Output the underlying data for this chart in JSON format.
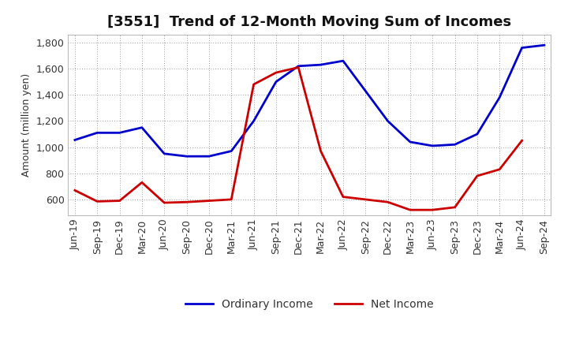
{
  "title": "[3551]  Trend of 12-Month Moving Sum of Incomes",
  "ylabel": "Amount (million yen)",
  "x_labels": [
    "Jun-19",
    "Sep-19",
    "Dec-19",
    "Mar-20",
    "Jun-20",
    "Sep-20",
    "Dec-20",
    "Mar-21",
    "Jun-21",
    "Sep-21",
    "Dec-21",
    "Mar-22",
    "Jun-22",
    "Sep-22",
    "Dec-22",
    "Mar-23",
    "Jun-23",
    "Sep-23",
    "Dec-23",
    "Mar-24",
    "Jun-24",
    "Sep-24"
  ],
  "ordinary_income": [
    1055,
    1110,
    1110,
    1150,
    950,
    930,
    930,
    970,
    1200,
    1500,
    1620,
    1630,
    1660,
    1430,
    1200,
    1040,
    1010,
    1020,
    1100,
    1380,
    1760,
    1780
  ],
  "net_income": [
    670,
    585,
    590,
    730,
    575,
    580,
    590,
    600,
    1480,
    1570,
    1610,
    970,
    620,
    600,
    580,
    520,
    520,
    540,
    780,
    830,
    1050,
    null
  ],
  "ordinary_color": "#0000cc",
  "net_color": "#cc0000",
  "ylim": [
    480,
    1860
  ],
  "yticks": [
    600,
    800,
    1000,
    1200,
    1400,
    1600,
    1800
  ],
  "background_color": "#FFFFFF",
  "grid_color": "#999999",
  "title_fontsize": 13,
  "axis_label_fontsize": 9,
  "tick_fontsize": 9,
  "legend_fontsize": 10,
  "linewidth": 2.0
}
